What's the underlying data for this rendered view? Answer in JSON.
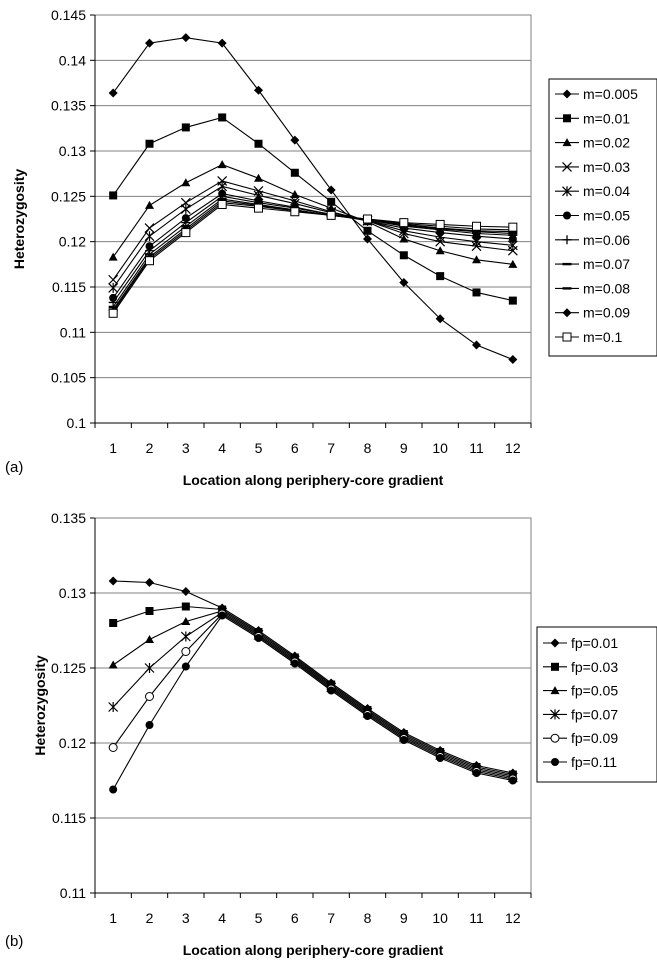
{
  "chart_data": [
    {
      "type": "line",
      "panel_label": "(a)",
      "xlabel": "Location along periphery-core gradient",
      "ylabel": "Heterozygosity",
      "categories": [
        "1",
        "2",
        "3",
        "4",
        "5",
        "6",
        "7",
        "8",
        "9",
        "10",
        "11",
        "12"
      ],
      "ylim": [
        0.1,
        0.145
      ],
      "yticks": [
        "0.1",
        "0.105",
        "0.11",
        "0.115",
        "0.12",
        "0.125",
        "0.13",
        "0.135",
        "0.14",
        "0.145"
      ],
      "grid": true,
      "legend_position": "right",
      "series": [
        {
          "name": "m=0.005",
          "marker": "diamond",
          "values": [
            0.1364,
            0.1419,
            0.1425,
            0.1419,
            0.1367,
            0.1312,
            0.1257,
            0.1203,
            0.1155,
            0.1115,
            0.1086,
            0.107
          ]
        },
        {
          "name": "m=0.01",
          "marker": "square",
          "values": [
            0.1251,
            0.1308,
            0.1326,
            0.1337,
            0.1308,
            0.1276,
            0.1244,
            0.1212,
            0.1185,
            0.1162,
            0.1144,
            0.1135
          ]
        },
        {
          "name": "m=0.02",
          "marker": "triangle",
          "values": [
            0.1183,
            0.124,
            0.1265,
            0.1285,
            0.127,
            0.1252,
            0.1237,
            0.1222,
            0.1203,
            0.119,
            0.118,
            0.1175
          ]
        },
        {
          "name": "m=0.03",
          "marker": "x",
          "values": [
            0.1158,
            0.1215,
            0.1243,
            0.1267,
            0.1256,
            0.1245,
            0.1233,
            0.1223,
            0.1209,
            0.12,
            0.1195,
            0.119
          ]
        },
        {
          "name": "m=0.04",
          "marker": "asterisk",
          "values": [
            0.1149,
            0.1206,
            0.1236,
            0.1261,
            0.1251,
            0.1242,
            0.1232,
            0.1223,
            0.1212,
            0.1205,
            0.12,
            0.1196
          ]
        },
        {
          "name": "m=0.05",
          "marker": "circle",
          "values": [
            0.1138,
            0.1195,
            0.1226,
            0.1253,
            0.1245,
            0.1238,
            0.123,
            0.1223,
            0.1215,
            0.121,
            0.1206,
            0.1203
          ]
        },
        {
          "name": "m=0.06",
          "marker": "plus",
          "values": [
            0.1133,
            0.119,
            0.1221,
            0.125,
            0.1243,
            0.1237,
            0.123,
            0.1224,
            0.1217,
            0.1213,
            0.1209,
            0.1207
          ]
        },
        {
          "name": "m=0.07",
          "marker": "dash",
          "values": [
            0.1128,
            0.1186,
            0.1217,
            0.1247,
            0.1241,
            0.1235,
            0.1229,
            0.1224,
            0.1218,
            0.1214,
            0.1211,
            0.1209
          ]
        },
        {
          "name": "m=0.08",
          "marker": "dash",
          "values": [
            0.1125,
            0.1183,
            0.1214,
            0.1245,
            0.124,
            0.1235,
            0.1229,
            0.1224,
            0.1219,
            0.1215,
            0.1212,
            0.1211
          ]
        },
        {
          "name": "m=0.09",
          "marker": "diamond",
          "values": [
            0.1123,
            0.1181,
            0.1212,
            0.1243,
            0.1239,
            0.1234,
            0.1229,
            0.1225,
            0.122,
            0.1217,
            0.1214,
            0.1213
          ]
        },
        {
          "name": "m=0.1",
          "marker": "square-open",
          "values": [
            0.1121,
            0.1179,
            0.121,
            0.1241,
            0.1237,
            0.1233,
            0.1229,
            0.1225,
            0.1221,
            0.1219,
            0.1217,
            0.1216
          ]
        }
      ]
    },
    {
      "type": "line",
      "panel_label": "(b)",
      "xlabel": "Location along periphery-core gradient",
      "ylabel": "Heterozygosity",
      "categories": [
        "1",
        "2",
        "3",
        "4",
        "5",
        "6",
        "7",
        "8",
        "9",
        "10",
        "11",
        "12"
      ],
      "ylim": [
        0.11,
        0.135
      ],
      "yticks": [
        "0.11",
        "0.115",
        "0.12",
        "0.125",
        "0.13",
        "0.135"
      ],
      "grid": true,
      "legend_position": "right",
      "series": [
        {
          "name": "fp=0.01",
          "marker": "diamond",
          "values": [
            0.1308,
            0.1307,
            0.1301,
            0.129,
            0.1275,
            0.1258,
            0.124,
            0.1223,
            0.1207,
            0.1195,
            0.1185,
            0.118
          ]
        },
        {
          "name": "fp=0.03",
          "marker": "square",
          "values": [
            0.128,
            0.1288,
            0.1291,
            0.1289,
            0.1274,
            0.1257,
            0.1239,
            0.1222,
            0.1206,
            0.1194,
            0.1184,
            0.1179
          ]
        },
        {
          "name": "fp=0.05",
          "marker": "triangle",
          "values": [
            0.1252,
            0.1269,
            0.1281,
            0.1288,
            0.1273,
            0.1256,
            0.1238,
            0.1221,
            0.1205,
            0.1193,
            0.1183,
            0.1178
          ]
        },
        {
          "name": "fp=0.07",
          "marker": "asterisk",
          "values": [
            0.1224,
            0.125,
            0.1271,
            0.1287,
            0.1272,
            0.1255,
            0.1237,
            0.122,
            0.1204,
            0.1192,
            0.1182,
            0.1177
          ]
        },
        {
          "name": "fp=0.09",
          "marker": "circle-open",
          "values": [
            0.1197,
            0.1231,
            0.1261,
            0.1286,
            0.1271,
            0.1254,
            0.1236,
            0.1219,
            0.1203,
            0.1191,
            0.1181,
            0.1176
          ]
        },
        {
          "name": "fp=0.11",
          "marker": "circle",
          "values": [
            0.1169,
            0.1212,
            0.1251,
            0.1285,
            0.127,
            0.1253,
            0.1235,
            0.1218,
            0.1202,
            0.119,
            0.118,
            0.1175
          ]
        }
      ]
    }
  ]
}
